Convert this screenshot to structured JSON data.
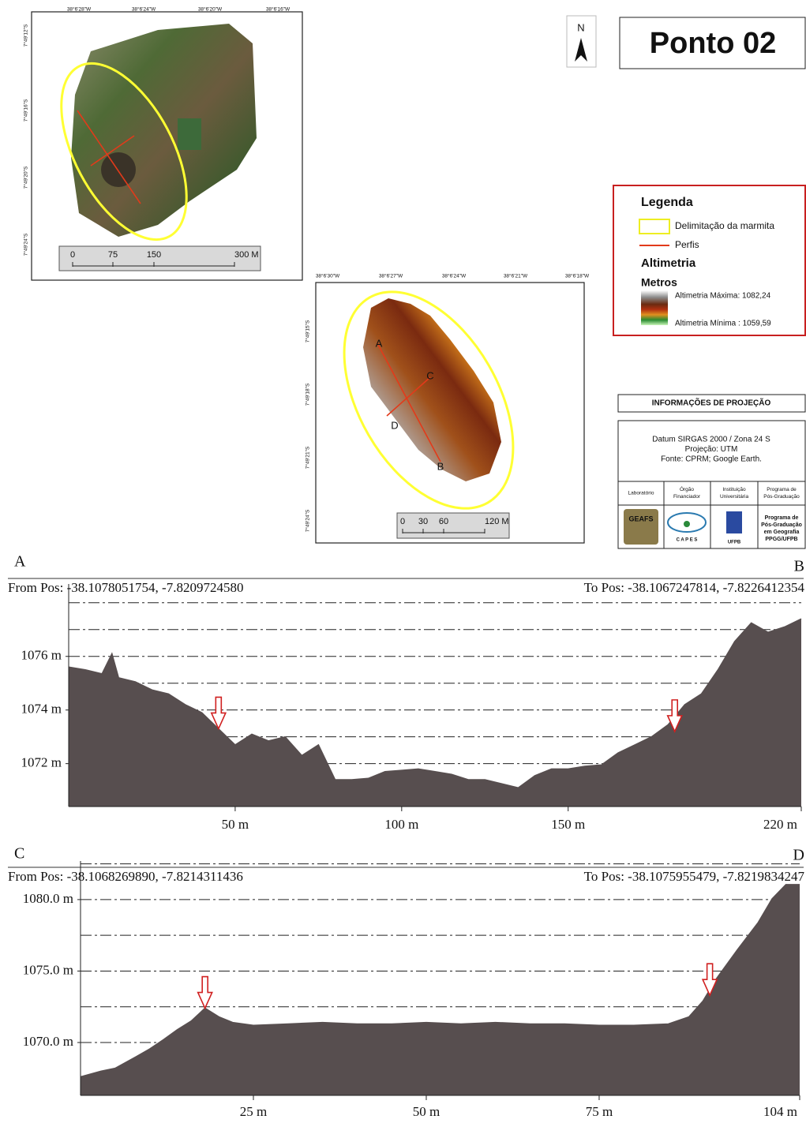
{
  "title": "Ponto 02",
  "north": "N",
  "maps": [
    {
      "top_labels": [
        "38°6'28\"W",
        "38°6'24\"W",
        "38°6'20\"W",
        "38°6'16\"W"
      ],
      "left_labels": [
        "7°49'12\"S",
        "7°49'16\"S",
        "7°49'20\"S",
        "7°49'24\"S"
      ],
      "scale_labels": [
        "0",
        "75",
        "150",
        "300 M"
      ]
    },
    {
      "top_labels": [
        "38°6'30\"W",
        "38°6'27\"W",
        "38°6'24\"W",
        "38°6'21\"W",
        "38°6'18\"W"
      ],
      "left_labels": [
        "7°49'15\"S",
        "7°49'18\"S",
        "7°49'21\"S",
        "7°49'24\"S"
      ],
      "scale_labels": [
        "0",
        "30",
        "60",
        "120 M"
      ],
      "points": [
        "A",
        "B",
        "C",
        "D"
      ]
    }
  ],
  "legend": {
    "title": "Legenda",
    "items": [
      "Delimitação da marmita",
      "Perfis"
    ],
    "altimetry_title": "Altimetria",
    "units": "Metros",
    "max": "Altimetria Máxima: 1082,24",
    "min": "Altimetria Mínima : 1059,59"
  },
  "projection": {
    "title": "INFORMAÇÕES DE PROJEÇÃO",
    "lines": [
      "Datum SIRGAS 2000  / Zona 24 S",
      "Projeção: UTM",
      "Fonte: CPRM; Google Earth."
    ],
    "headers": [
      [
        "Laboratório"
      ],
      [
        "Órgão",
        "Financiador"
      ],
      [
        "Instituição",
        "Universitária"
      ],
      [
        "Programa de",
        "Pós-Graduação"
      ]
    ],
    "logos": [
      "GEAFS",
      "C A P E S",
      "UFPB"
    ],
    "program_logo": [
      "Programa de",
      "Pós-Graduação",
      "em Geografia",
      "PPGG/UFPB"
    ]
  },
  "chart_data": [
    {
      "type": "area",
      "start_label": "A",
      "end_label": "B",
      "from": "From Pos: -38.1078051754, -7.8209724580",
      "to": "To Pos: -38.1067247814, -7.8226412354",
      "color": "#574e4f",
      "x": [
        0,
        5,
        10,
        13,
        15,
        20,
        25,
        30,
        35,
        40,
        45,
        50,
        55,
        60,
        65,
        70,
        75,
        80,
        85,
        90,
        95,
        100,
        105,
        110,
        115,
        120,
        125,
        130,
        135,
        140,
        145,
        150,
        155,
        160,
        165,
        170,
        175,
        180,
        185,
        190,
        195,
        200,
        205,
        210,
        215,
        220
      ],
      "values": [
        1075.6,
        1075.5,
        1075.35,
        1076.1,
        1075.2,
        1075.05,
        1074.75,
        1074.6,
        1074.2,
        1073.9,
        1073.3,
        1072.7,
        1073.1,
        1072.85,
        1073.0,
        1072.3,
        1072.7,
        1071.4,
        1071.4,
        1071.45,
        1071.7,
        1071.75,
        1071.8,
        1071.7,
        1071.6,
        1071.4,
        1071.4,
        1071.25,
        1071.1,
        1071.55,
        1071.8,
        1071.8,
        1071.9,
        1071.95,
        1072.4,
        1072.7,
        1073.0,
        1073.45,
        1074.2,
        1074.6,
        1075.5,
        1076.55,
        1077.25,
        1076.9,
        1077.1,
        1077.4
      ],
      "xlim": [
        0,
        220
      ],
      "xticks": [
        {
          "value": 50,
          "label": "50 m"
        },
        {
          "value": 100,
          "label": "100 m"
        },
        {
          "value": 150,
          "label": "150 m"
        },
        {
          "value": 220,
          "label": "220 m"
        }
      ],
      "ylim": [
        1070.4,
        1078.7
      ],
      "yticks": [
        {
          "value": 1072,
          "label": "1072 m"
        },
        {
          "value": 1074,
          "label": "1074 m"
        },
        {
          "value": 1076,
          "label": "1076 m"
        }
      ],
      "grid_lines": [
        1071,
        1072,
        1073,
        1074,
        1075,
        1076,
        1077,
        1078
      ],
      "arrows": [
        {
          "x": 45,
          "y": 1073.3
        },
        {
          "x": 182,
          "y": 1073.2
        }
      ]
    },
    {
      "type": "area",
      "start_label": "C",
      "end_label": "D",
      "from": "From Pos: -38.1068269890, -7.8214311436",
      "to": "To Pos: -38.1075955479, -7.8219834247",
      "color": "#574e4f",
      "x": [
        0,
        3,
        5,
        8,
        10,
        12,
        14,
        16,
        18,
        20,
        22,
        25,
        30,
        35,
        40,
        45,
        50,
        55,
        60,
        65,
        70,
        75,
        80,
        85,
        88,
        90,
        92,
        95,
        98,
        100,
        102,
        104
      ],
      "values": [
        1067.6,
        1068.0,
        1068.2,
        1069.0,
        1069.55,
        1070.2,
        1070.9,
        1071.5,
        1072.4,
        1071.8,
        1071.4,
        1071.2,
        1071.3,
        1071.4,
        1071.3,
        1071.3,
        1071.4,
        1071.3,
        1071.4,
        1071.3,
        1071.3,
        1071.2,
        1071.2,
        1071.3,
        1071.8,
        1072.9,
        1074.5,
        1076.5,
        1078.4,
        1080.05,
        1081.05,
        1081.05
      ],
      "xlim": [
        0,
        104
      ],
      "xticks": [
        {
          "value": 25,
          "label": "25 m"
        },
        {
          "value": 50,
          "label": "50 m"
        },
        {
          "value": 75,
          "label": "75 m"
        },
        {
          "value": 104,
          "label": "104 m"
        }
      ],
      "ylim": [
        1066.3,
        1082.7
      ],
      "yticks": [
        {
          "value": 1070,
          "label": "1070.0 m"
        },
        {
          "value": 1075,
          "label": "1075.0 m"
        },
        {
          "value": 1080,
          "label": "1080.0 m"
        }
      ],
      "grid_lines": [
        1067.5,
        1070,
        1072.5,
        1075,
        1077.5,
        1080,
        1082.5
      ],
      "arrows": [
        {
          "x": 18,
          "y": 1072.4
        },
        {
          "x": 91,
          "y": 1073.3
        }
      ]
    }
  ]
}
